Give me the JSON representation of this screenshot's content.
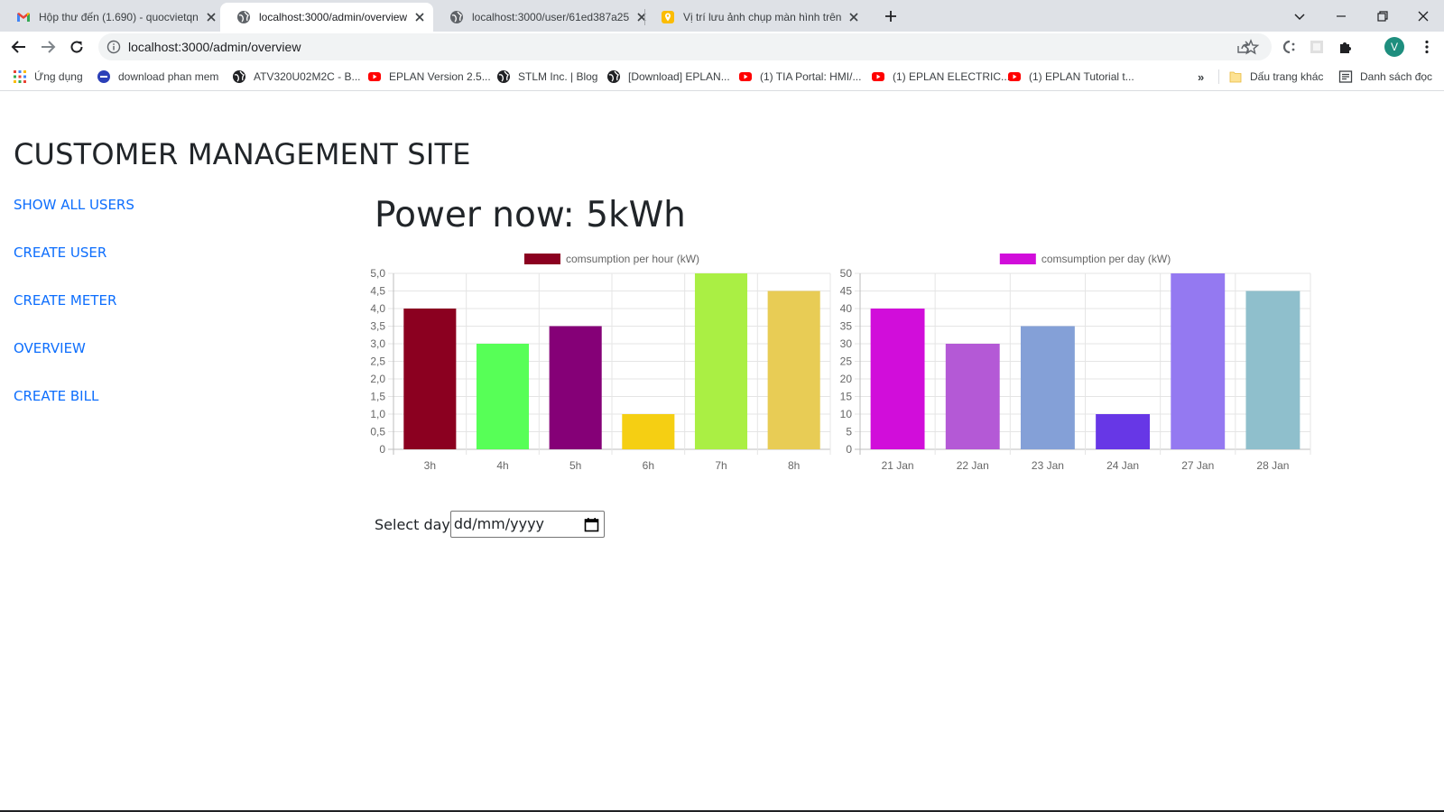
{
  "browser": {
    "tabs": [
      {
        "title": "Hộp thư đến (1.690) - quocvietqn",
        "icon": "gmail-icon"
      },
      {
        "title": "localhost:3000/admin/overview",
        "icon": "globe-icon"
      },
      {
        "title": "localhost:3000/user/61ed387a25",
        "icon": "globe-icon"
      },
      {
        "title": "Vị trí lưu ảnh chụp màn hình trên",
        "icon": "maps-pin-icon"
      }
    ],
    "url": "localhost:3000/admin/overview",
    "profile_initial": "V",
    "bookmarks": [
      {
        "label": "Ứng dụng",
        "icon": "apps-grid-icon"
      },
      {
        "label": "download phan mem",
        "icon": "site-icon"
      },
      {
        "label": "ATV320U02M2C - B...",
        "icon": "globe-icon"
      },
      {
        "label": "EPLAN Version 2.5...",
        "icon": "youtube-icon"
      },
      {
        "label": "STLM Inc. | Blog",
        "icon": "globe-icon"
      },
      {
        "label": "[Download] EPLAN...",
        "icon": "globe-icon"
      },
      {
        "label": "(1) TIA Portal: HMI/...",
        "icon": "youtube-icon"
      },
      {
        "label": "(1) EPLAN ELECTRIC...",
        "icon": "youtube-icon"
      },
      {
        "label": "(1) EPLAN Tutorial t...",
        "icon": "youtube-icon"
      }
    ],
    "bookmarks_more": "»",
    "other_bookmarks": "Dấu trang khác",
    "reading_list": "Danh sách đọc"
  },
  "site": {
    "title": "CUSTOMER MANAGEMENT SITE",
    "nav": [
      "SHOW ALL USERS",
      "CREATE USER",
      "CREATE METER",
      "OVERVIEW",
      "CREATE BILL"
    ],
    "power_now": "Power now: 5kWh",
    "select_day_label": "Select day",
    "date_placeholder": "dd/mm/yyyy",
    "accent_link_color": "#0d6efd"
  },
  "chart_data": [
    {
      "type": "bar",
      "legend": "comsumption per hour (kW)",
      "legend_color": "#8b0020",
      "categories": [
        "3h",
        "4h",
        "5h",
        "6h",
        "7h",
        "8h"
      ],
      "values": [
        4,
        3,
        3.5,
        1,
        5,
        4.5
      ],
      "colors": [
        "#8b0020",
        "#57ff57",
        "#850077",
        "#f5cf13",
        "#aaef44",
        "#e8cc55"
      ],
      "ylim": [
        0,
        5
      ],
      "yticks": [
        "0",
        "0,5",
        "1,0",
        "1,5",
        "2,0",
        "2,5",
        "3,0",
        "3,5",
        "4,0",
        "4,5",
        "5,0"
      ],
      "grid": true
    },
    {
      "type": "bar",
      "legend": "comsumption per day (kW)",
      "legend_color": "#d10dda",
      "categories": [
        "21 Jan",
        "22 Jan",
        "23 Jan",
        "24 Jan",
        "27 Jan",
        "28 Jan"
      ],
      "values": [
        40,
        30,
        35,
        10,
        50,
        45
      ],
      "colors": [
        "#d10dda",
        "#b459d6",
        "#84a0d7",
        "#6737e6",
        "#9479f1",
        "#8fbfcc"
      ],
      "ylim": [
        0,
        50
      ],
      "yticks": [
        "0",
        "5",
        "10",
        "15",
        "20",
        "25",
        "30",
        "35",
        "40",
        "45",
        "50"
      ],
      "grid": true
    }
  ]
}
